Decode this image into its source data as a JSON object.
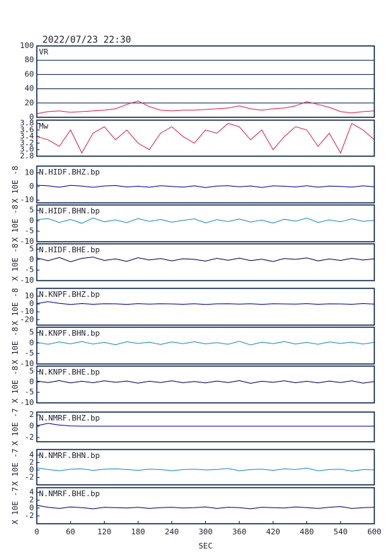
{
  "chart_data": [
    {
      "type": "line",
      "title": "2022/07/23 22:30",
      "label": "VR",
      "x": [
        0,
        20,
        40,
        60,
        80,
        100,
        120,
        140,
        160,
        180,
        200,
        220,
        240,
        260,
        280,
        300,
        320,
        340,
        360,
        380,
        400,
        420,
        440,
        460,
        480,
        500,
        520,
        540,
        560,
        580,
        600
      ],
      "xlim": [
        0,
        600
      ],
      "ylim": [
        0,
        100
      ],
      "yticks": [
        0,
        20,
        40,
        60,
        80,
        100
      ],
      "grid": true,
      "series": [
        {
          "color": "#e0204f",
          "values": [
            5,
            8,
            9,
            7,
            8,
            9,
            10,
            12,
            18,
            23,
            15,
            10,
            9,
            10,
            10,
            11,
            12,
            13,
            16,
            12,
            10,
            12,
            13,
            16,
            22,
            18,
            14,
            8,
            6,
            8,
            9
          ]
        }
      ]
    },
    {
      "type": "line",
      "label": "Mw",
      "x": [
        0,
        20,
        40,
        60,
        80,
        100,
        120,
        140,
        160,
        180,
        200,
        220,
        240,
        260,
        280,
        300,
        320,
        340,
        360,
        380,
        400,
        420,
        440,
        460,
        480,
        500,
        520,
        540,
        560,
        580,
        600
      ],
      "xlim": [
        0,
        600
      ],
      "ylim": [
        2.8,
        3.9
      ],
      "yticks": [
        2.8,
        {
          "value": 3,
          "label": "3.0"
        },
        3.2,
        3.4,
        3.6,
        3.8
      ],
      "grid": false,
      "series": [
        {
          "color": "#e0204f",
          "values": [
            3.4,
            3.3,
            3.1,
            3.6,
            2.9,
            3.5,
            3.7,
            3.3,
            3.6,
            3.2,
            3.0,
            3.5,
            3.7,
            3.4,
            3.2,
            3.6,
            3.5,
            3.8,
            3.7,
            3.3,
            3.6,
            3.0,
            3.4,
            3.7,
            3.6,
            3.1,
            3.5,
            2.9,
            3.8,
            3.6,
            3.3
          ]
        }
      ]
    },
    {
      "type": "line",
      "label": "N.HIDF.BHZ.bp",
      "ylabel": "X 10E -8",
      "x": [
        0,
        20,
        40,
        60,
        80,
        100,
        120,
        140,
        160,
        180,
        200,
        220,
        240,
        260,
        280,
        300,
        320,
        340,
        360,
        380,
        400,
        420,
        440,
        460,
        480,
        500,
        520,
        540,
        560,
        580,
        600
      ],
      "xlim": [
        0,
        600
      ],
      "ylim": [
        -12,
        15
      ],
      "yticks": [
        10,
        0,
        -10
      ],
      "series": [
        {
          "color": "#0000a0",
          "values": [
            1,
            0.5,
            -0.5,
            0.8,
            0.3,
            -0.6,
            0.4,
            0.7,
            -0.3,
            0.2,
            -0.5,
            0.6,
            0.1,
            -0.4,
            0.5,
            -0.8,
            0.3,
            0.6,
            -0.2,
            0.4,
            -0.7,
            0.5,
            0.2,
            -0.3,
            0.6,
            -0.5,
            0.3,
            0.1,
            -0.4,
            0.5,
            -0.2
          ]
        }
      ]
    },
    {
      "type": "line",
      "label": "N.HIDF.BHN.bp",
      "ylabel": "X 10E -8",
      "x": [
        0,
        20,
        40,
        60,
        80,
        100,
        120,
        140,
        160,
        180,
        200,
        220,
        240,
        260,
        280,
        300,
        320,
        340,
        360,
        380,
        400,
        420,
        440,
        460,
        480,
        500,
        520,
        540,
        560,
        580,
        600
      ],
      "xlim": [
        0,
        600
      ],
      "ylim": [
        -10,
        7.5
      ],
      "yticks": [
        5,
        0,
        -5,
        -10
      ],
      "series": [
        {
          "color": "#1a8ad0",
          "values": [
            0.5,
            1,
            -0.8,
            0.6,
            -1.2,
            1.3,
            -0.5,
            0.4,
            -0.9,
            1,
            -0.3,
            0.6,
            -0.7,
            0.2,
            0.9,
            -1,
            0.5,
            -0.4,
            0.8,
            -0.6,
            0.3,
            -1.1,
            0.7,
            -0.2,
            1.2,
            -0.8,
            0.4,
            -0.5,
            0.9,
            -0.3,
            0.2
          ]
        }
      ]
    },
    {
      "type": "line",
      "label": "N.HIDF.BHE.bp",
      "ylabel": "X 10E -8",
      "x": [
        0,
        20,
        40,
        60,
        80,
        100,
        120,
        140,
        160,
        180,
        200,
        220,
        240,
        260,
        280,
        300,
        320,
        340,
        360,
        380,
        400,
        420,
        440,
        460,
        480,
        500,
        520,
        540,
        560,
        580,
        600
      ],
      "xlim": [
        0,
        600
      ],
      "ylim": [
        -10,
        7.5
      ],
      "yticks": [
        5,
        0,
        -5,
        -10
      ],
      "series": [
        {
          "color": "#000060",
          "values": [
            0.8,
            -0.5,
            1,
            -1,
            0.6,
            1.2,
            -0.4,
            0.3,
            -0.8,
            0.9,
            -0.2,
            0.5,
            -0.6,
            0.4,
            0.1,
            -0.7,
            0.6,
            -0.3,
            0.7,
            -0.5,
            0.2,
            -0.9,
            0.5,
            0.1,
            0.8,
            -0.6,
            0.3,
            -0.4,
            0.6,
            -0.2,
            0.4
          ]
        }
      ]
    },
    {
      "type": "line",
      "label": "N.KNPF.BHZ.bp",
      "ylabel": "X 10E -8",
      "x": [
        0,
        20,
        40,
        60,
        80,
        100,
        120,
        140,
        160,
        180,
        200,
        220,
        240,
        260,
        280,
        300,
        320,
        340,
        360,
        380,
        400,
        420,
        440,
        460,
        480,
        500,
        520,
        540,
        560,
        580,
        600
      ],
      "xlim": [
        0,
        600
      ],
      "ylim": [
        -27,
        20
      ],
      "yticks": [
        10,
        0,
        -10,
        -20
      ],
      "series": [
        {
          "color": "#0000a0",
          "values": [
            0.5,
            3,
            0.8,
            -0.5,
            0.6,
            -0.3,
            0.4,
            0.2,
            -0.4,
            0.5,
            -0.2,
            0.3,
            0.1,
            -0.3,
            0.4,
            -0.5,
            0.2,
            0.3,
            -0.1,
            0.4,
            -0.4,
            0.3,
            0.1,
            -0.2,
            0.5,
            -0.3,
            0.2,
            0.1,
            -0.3,
            0.6,
            -0.2
          ]
        }
      ]
    },
    {
      "type": "line",
      "label": "N.KNPF.BHN.bp",
      "ylabel": "X 10E -8",
      "x": [
        0,
        20,
        40,
        60,
        80,
        100,
        120,
        140,
        160,
        180,
        200,
        220,
        240,
        260,
        280,
        300,
        320,
        340,
        360,
        380,
        400,
        420,
        440,
        460,
        480,
        500,
        520,
        540,
        560,
        580,
        600
      ],
      "xlim": [
        0,
        600
      ],
      "ylim": [
        -10,
        7.5
      ],
      "yticks": [
        5,
        0,
        -5,
        -10
      ],
      "series": [
        {
          "color": "#1a8ad0",
          "values": [
            0.3,
            -0.6,
            0.5,
            -0.4,
            0.7,
            -0.5,
            0.3,
            -0.8,
            0.6,
            -0.2,
            0.4,
            -0.7,
            0.5,
            -0.3,
            0.6,
            -0.4,
            0.2,
            -0.6,
            0.8,
            -0.9,
            0.4,
            -0.3,
            0.7,
            -0.5,
            0.3,
            -0.6,
            0.5,
            -0.2,
            0.4,
            -0.5,
            0.3
          ]
        }
      ]
    },
    {
      "type": "line",
      "label": "N.KNPF.BHE.bp",
      "ylabel": "X 10E -8",
      "x": [
        0,
        20,
        40,
        60,
        80,
        100,
        120,
        140,
        160,
        180,
        200,
        220,
        240,
        260,
        280,
        300,
        320,
        340,
        360,
        380,
        400,
        420,
        440,
        460,
        480,
        500,
        520,
        540,
        560,
        580,
        600
      ],
      "xlim": [
        0,
        600
      ],
      "ylim": [
        -10,
        7.5
      ],
      "yticks": [
        5,
        0,
        -5,
        -10
      ],
      "series": [
        {
          "color": "#000060",
          "values": [
            0.4,
            -0.3,
            0.6,
            -0.5,
            0.3,
            -0.4,
            0.5,
            -0.2,
            0.4,
            -0.6,
            0.3,
            -0.3,
            0.5,
            -0.4,
            0.2,
            -0.5,
            0.4,
            -0.3,
            0.6,
            -0.7,
            0.3,
            -0.2,
            0.5,
            -0.4,
            0.3,
            -0.5,
            0.4,
            -0.3,
            0.5,
            -0.6,
            0.2
          ]
        }
      ]
    },
    {
      "type": "line",
      "label": "N.NMRF.BHZ.bp",
      "ylabel": "X 10E -7",
      "x": [
        0,
        20,
        40,
        60,
        80,
        100,
        120,
        140,
        160,
        180,
        200,
        220,
        240,
        260,
        280,
        300,
        320,
        340,
        360,
        380,
        400,
        420,
        440,
        460,
        480,
        500,
        520,
        540,
        560,
        580,
        600
      ],
      "xlim": [
        0,
        600
      ],
      "ylim": [
        -2.75,
        2.5
      ],
      "yticks": [
        2,
        0,
        -2
      ],
      "series": [
        {
          "color": "#0000c0",
          "values": [
            0.1,
            0.5,
            0.2,
            0.05,
            0,
            0,
            0,
            0,
            0,
            0,
            0,
            0,
            0,
            0,
            0,
            0,
            0,
            0,
            0,
            0,
            0,
            0,
            0,
            0,
            0,
            0,
            0,
            0,
            0,
            0,
            0
          ]
        }
      ]
    },
    {
      "type": "line",
      "label": "N.NMRF.BHN.bp",
      "ylabel": "X 10E -7",
      "x": [
        0,
        20,
        40,
        60,
        80,
        100,
        120,
        140,
        160,
        180,
        200,
        220,
        240,
        260,
        280,
        300,
        320,
        340,
        360,
        380,
        400,
        420,
        440,
        460,
        480,
        500,
        520,
        540,
        560,
        580,
        600
      ],
      "xlim": [
        0,
        600
      ],
      "ylim": [
        -4,
        5.5
      ],
      "yticks": [
        4,
        2,
        0,
        -2
      ],
      "series": [
        {
          "color": "#1a8ad0",
          "values": [
            0.6,
            0.1,
            -0.2,
            0.2,
            0.3,
            -0.1,
            0.2,
            0.3,
            0.1,
            -0.1,
            0.2,
            0.1,
            -0.2,
            0.1,
            0.2,
            0,
            0.1,
            0.4,
            -0.2,
            0.1,
            0.2,
            -0.1,
            0.3,
            0.1,
            0.5,
            -0.2,
            0.1,
            0.2,
            -0.3,
            0.1,
            0
          ]
        }
      ]
    },
    {
      "type": "line",
      "label": "N.NMRF.BHE.bp",
      "ylabel": "X 10E -7",
      "x": [
        0,
        20,
        40,
        60,
        80,
        100,
        120,
        140,
        160,
        180,
        200,
        220,
        240,
        260,
        280,
        300,
        320,
        340,
        360,
        380,
        400,
        420,
        440,
        460,
        480,
        500,
        520,
        540,
        560,
        580,
        600
      ],
      "xlim": [
        0,
        600
      ],
      "ylim": [
        -4,
        5.2
      ],
      "yticks": [
        4,
        2,
        0,
        -2
      ],
      "xticks": [
        0,
        60,
        120,
        180,
        240,
        300,
        360,
        420,
        480,
        540,
        600
      ],
      "xlabel": "SEC",
      "series": [
        {
          "color": "#000080",
          "values": [
            0.7,
            0.2,
            -0.1,
            0.3,
            0.1,
            -0.2,
            0.2,
            0.1,
            0,
            0.2,
            -0.1,
            0.1,
            0.2,
            0,
            0.1,
            0.3,
            -0.1,
            0.2,
            0.1,
            -0.2,
            0.2,
            0.1,
            0,
            0.3,
            0.1,
            -0.1,
            0.2,
            0.4,
            -0.1,
            0.1,
            0.2
          ]
        }
      ]
    }
  ]
}
